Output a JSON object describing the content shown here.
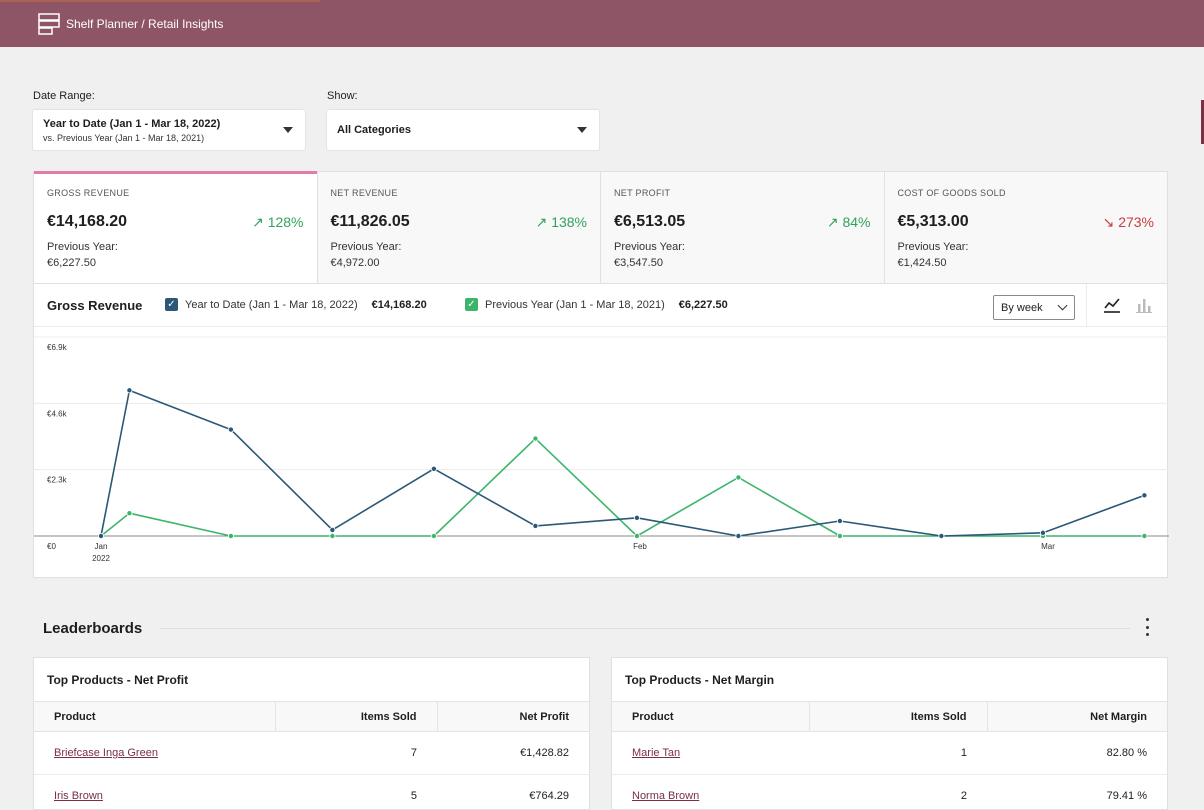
{
  "app": {
    "title": "Shelf Planner / Retail Insights"
  },
  "filters": {
    "date_range_label": "Date Range:",
    "date_range_value": "Year to Date (Jan 1 - Mar 18, 2022)",
    "date_range_compare": "vs. Previous Year (Jan 1 - Mar 18, 2021)",
    "show_label": "Show:",
    "show_value": "All Categories"
  },
  "summary": [
    {
      "label": "GROSS REVENUE",
      "value": "€14,168.20",
      "delta": "128%",
      "trend": "up",
      "prev_label": "Previous Year:",
      "prev_value": "€6,227.50"
    },
    {
      "label": "NET REVENUE",
      "value": "€11,826.05",
      "delta": "138%",
      "trend": "up",
      "prev_label": "Previous Year:",
      "prev_value": "€4,972.00"
    },
    {
      "label": "NET PROFIT",
      "value": "€6,513.05",
      "delta": "84%",
      "trend": "up",
      "prev_label": "Previous Year:",
      "prev_value": "€3,547.50"
    },
    {
      "label": "COST OF GOODS SOLD",
      "value": "€5,313.00",
      "delta": "273%",
      "trend": "down",
      "prev_label": "Previous Year:",
      "prev_value": "€1,424.50"
    }
  ],
  "chart_panel": {
    "title": "Gross Revenue",
    "legend": [
      {
        "label": "Year to Date (Jan 1 - Mar 18, 2022)",
        "total": "€14,168.20",
        "color": "#2b5876",
        "checked": true
      },
      {
        "label": "Previous Year (Jan 1 - Mar 18, 2021)",
        "total": "€6,227.50",
        "color": "#3cb56b",
        "checked": true
      }
    ],
    "interval": "By week",
    "chart_types": [
      "line-chart-icon",
      "bar-chart-icon"
    ],
    "selected_type": "line"
  },
  "chart_data": {
    "type": "line",
    "title": "",
    "xlabel": "",
    "ylabel": "",
    "ylim": [
      0,
      6900
    ],
    "yticks": [
      "€0",
      "€2.3k",
      "€4.6k",
      "€6.9k"
    ],
    "ytick_values": [
      0,
      2300,
      4600,
      6900
    ],
    "x_tick_labels": [
      {
        "index": 0,
        "label": "Jan",
        "sublabel": "2022"
      },
      {
        "index": 5.31,
        "label": "Feb",
        "sublabel": ""
      },
      {
        "index": 9.33,
        "label": "Mar",
        "sublabel": ""
      }
    ],
    "x": [
      0,
      0.28,
      1.28,
      2.28,
      3.28,
      4.28,
      5.28,
      6.28,
      7.28,
      8.28,
      9.28,
      10.28
    ],
    "series": [
      {
        "name": "Year to Date (Jan 1 - Mar 18, 2022)",
        "color": "#2b5876",
        "values": [
          0,
          5050,
          3690,
          210,
          2330,
          350,
          630,
          0,
          520,
          0,
          110,
          1410
        ]
      },
      {
        "name": "Previous Year (Jan 1 - Mar 18, 2021)",
        "color": "#3cb56b",
        "values": [
          0,
          790,
          0,
          0,
          0,
          3380,
          0,
          2030,
          0,
          0,
          0,
          0
        ]
      }
    ]
  },
  "leaderboards": {
    "title": "Leaderboards",
    "boards": [
      {
        "title": "Top Products - Net Profit",
        "columns": [
          "Product",
          "Items Sold",
          "Net Profit"
        ],
        "rows": [
          [
            "Briefcase Inga Green",
            "7",
            "€1,428.82"
          ],
          [
            "Iris Brown",
            "5",
            "€764.29"
          ]
        ]
      },
      {
        "title": "Top Products - Net Margin",
        "columns": [
          "Product",
          "Items Sold",
          "Net Margin"
        ],
        "rows": [
          [
            "Marie Tan",
            "1",
            "82.80 %"
          ],
          [
            "Norma Brown",
            "2",
            "79.41 %"
          ]
        ]
      }
    ]
  }
}
